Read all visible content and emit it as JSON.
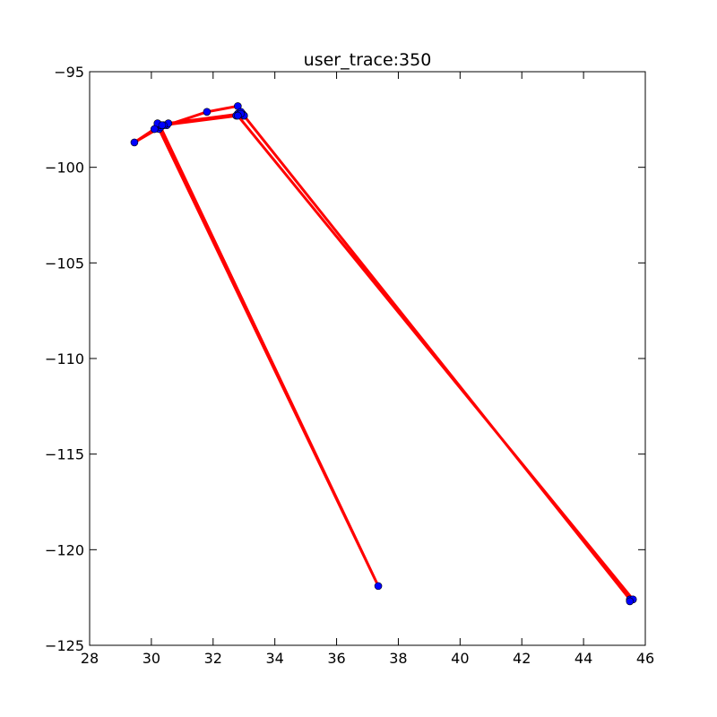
{
  "chart_data": {
    "type": "line",
    "title": "user_trace:350",
    "xlabel": "",
    "ylabel": "",
    "xlim": [
      28,
      46
    ],
    "ylim": [
      -125,
      -95
    ],
    "xticks": [
      28,
      30,
      32,
      34,
      36,
      38,
      40,
      42,
      44,
      46
    ],
    "yticks": [
      -95,
      -100,
      -105,
      -110,
      -115,
      -120,
      -125
    ],
    "grid": false,
    "legend": "none",
    "line_color": "#ff0000",
    "marker_color": "#0000ff",
    "marker_edge_color": "#000000",
    "series": [
      {
        "x": [
          45.5,
          33.0,
          32.8,
          32.95,
          30.2,
          30.25,
          37.35,
          30.3,
          29.45,
          30.1,
          30.3,
          30.5,
          31.8,
          32.8,
          32.9,
          32.75,
          33.0,
          32.9,
          30.55,
          30.4,
          30.2,
          30.1,
          30.35,
          32.8,
          45.6,
          45.5
        ],
        "y": [
          -122.6,
          -97.3,
          -97.2,
          -97.2,
          -97.8,
          -98.0,
          -121.9,
          -97.9,
          -98.7,
          -98.0,
          -97.8,
          -97.8,
          -97.1,
          -96.8,
          -97.1,
          -97.3,
          -97.3,
          -97.2,
          -97.7,
          -97.8,
          -97.7,
          -98.0,
          -97.8,
          -97.3,
          -122.6,
          -122.7
        ]
      }
    ]
  }
}
